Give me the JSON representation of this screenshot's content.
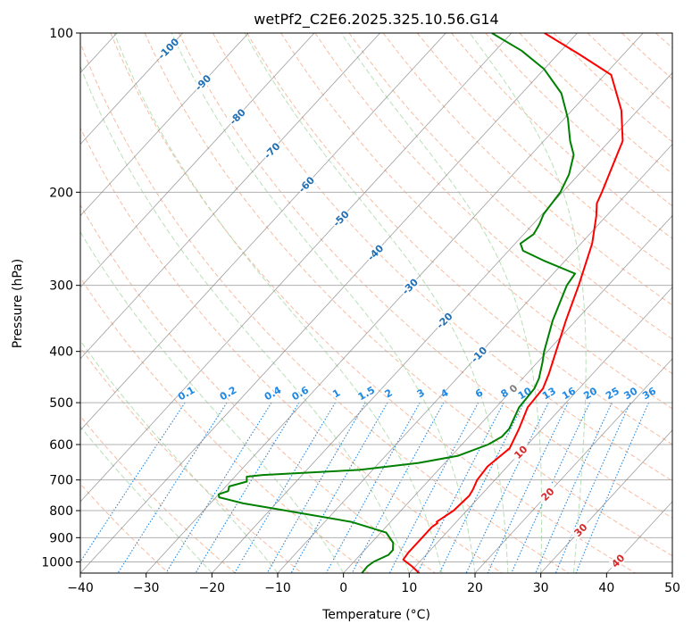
{
  "chart_data": {
    "type": "line",
    "title": "wetPf2_C2E6.2025.325.10.56.G14",
    "xlabel": "Temperature (°C)",
    "ylabel": "Pressure (hPa)",
    "xlim": [
      -40,
      50
    ],
    "ylim": [
      1050,
      100
    ],
    "y_scale": "log",
    "skew": "skew-T",
    "grid": true,
    "x_ticks": [
      -40,
      -30,
      -20,
      -10,
      0,
      10,
      20,
      30,
      40,
      50
    ],
    "y_ticks": [
      100,
      200,
      300,
      400,
      500,
      600,
      700,
      800,
      900,
      1000
    ],
    "series": [
      {
        "color": "#ff0000",
        "points": [
          {
            "t": 11.5,
            "p": 1050
          },
          {
            "t": 9.5,
            "p": 1020
          },
          {
            "t": 7.2,
            "p": 990
          },
          {
            "t": 7.0,
            "p": 960
          },
          {
            "t": 7.0,
            "p": 910
          },
          {
            "t": 7.0,
            "p": 860
          },
          {
            "t": 7.3,
            "p": 845
          },
          {
            "t": 7.0,
            "p": 840
          },
          {
            "t": 8.0,
            "p": 800
          },
          {
            "t": 8.3,
            "p": 750
          },
          {
            "t": 8.0,
            "p": 730
          },
          {
            "t": 7.3,
            "p": 700
          },
          {
            "t": 7.0,
            "p": 660
          },
          {
            "t": 7.8,
            "p": 610
          },
          {
            "t": 6.5,
            "p": 560
          },
          {
            "t": 4.8,
            "p": 510
          },
          {
            "t": 4.5,
            "p": 470
          },
          {
            "t": 3.3,
            "p": 440
          },
          {
            "t": 1.3,
            "p": 400
          },
          {
            "t": -1.5,
            "p": 350
          },
          {
            "t": -4.5,
            "p": 300
          },
          {
            "t": -8.3,
            "p": 250
          },
          {
            "t": -11.5,
            "p": 222
          },
          {
            "t": -13.2,
            "p": 210
          },
          {
            "t": -14.0,
            "p": 200
          },
          {
            "t": -15.4,
            "p": 185
          },
          {
            "t": -18.0,
            "p": 160
          },
          {
            "t": -22.5,
            "p": 140
          },
          {
            "t": -29.0,
            "p": 120
          },
          {
            "t": -36.5,
            "p": 110
          },
          {
            "t": -45.0,
            "p": 100
          }
        ]
      },
      {
        "color": "#008000",
        "points": [
          {
            "t": 2.8,
            "p": 1050
          },
          {
            "t": 2.7,
            "p": 1020
          },
          {
            "t": 3.0,
            "p": 1000
          },
          {
            "t": 4.3,
            "p": 970
          },
          {
            "t": 4.3,
            "p": 950
          },
          {
            "t": 3.3,
            "p": 920
          },
          {
            "t": 0.8,
            "p": 880
          },
          {
            "t": -6.0,
            "p": 840
          },
          {
            "t": -17.5,
            "p": 800
          },
          {
            "t": -25.0,
            "p": 775
          },
          {
            "t": -29.5,
            "p": 755
          },
          {
            "t": -30.0,
            "p": 745
          },
          {
            "t": -29.0,
            "p": 735
          },
          {
            "t": -29.5,
            "p": 720
          },
          {
            "t": -27.5,
            "p": 705
          },
          {
            "t": -28.2,
            "p": 690
          },
          {
            "t": -26.0,
            "p": 685
          },
          {
            "t": -12.0,
            "p": 670
          },
          {
            "t": -4.0,
            "p": 650
          },
          {
            "t": 1.0,
            "p": 630
          },
          {
            "t": 4.0,
            "p": 600
          },
          {
            "t": 5.0,
            "p": 580
          },
          {
            "t": 5.0,
            "p": 560
          },
          {
            "t": 3.5,
            "p": 510
          },
          {
            "t": 3.2,
            "p": 470
          },
          {
            "t": 2.5,
            "p": 450
          },
          {
            "t": 0.8,
            "p": 420
          },
          {
            "t": -0.5,
            "p": 400
          },
          {
            "t": -3.5,
            "p": 350
          },
          {
            "t": -6.3,
            "p": 300
          },
          {
            "t": -6.7,
            "p": 285
          },
          {
            "t": -13.0,
            "p": 270
          },
          {
            "t": -17.8,
            "p": 258
          },
          {
            "t": -19.2,
            "p": 250
          },
          {
            "t": -18.5,
            "p": 240
          },
          {
            "t": -19.0,
            "p": 230
          },
          {
            "t": -19.8,
            "p": 220
          },
          {
            "t": -20.3,
            "p": 200
          },
          {
            "t": -21.5,
            "p": 185
          },
          {
            "t": -23.5,
            "p": 170
          },
          {
            "t": -26.0,
            "p": 160
          },
          {
            "t": -29.5,
            "p": 145
          },
          {
            "t": -34.0,
            "p": 130
          },
          {
            "t": -40.0,
            "p": 117
          },
          {
            "t": -46.0,
            "p": 108
          },
          {
            "t": -53.0,
            "p": 100
          }
        ]
      }
    ],
    "dry_adiabat_labels": [
      "-100",
      "-90",
      "-80",
      "-70",
      "-60",
      "-50",
      "-40",
      "-30",
      "-20",
      "-10",
      "0",
      "10",
      "20",
      "30",
      "40"
    ],
    "mixing_ratio_labels": [
      "0.1",
      "0.2",
      "0.4",
      "0.6",
      "1",
      "1.5",
      "2",
      "3",
      "4",
      "6",
      "8",
      "10",
      "13",
      "16",
      "20",
      "25",
      "30",
      "36"
    ],
    "colors": {
      "temperature": "#ff0000",
      "dewpoint": "#008000",
      "dry_adiabat": "#f4a582",
      "moist_adiabat": "#a6d8a6",
      "mixing_ratio": "#1e88e5",
      "label_negative": "#1f6fb5",
      "label_zero": "#7f7f7f",
      "label_positive": "#d62728",
      "isotherm": "#7f7f7f",
      "isobar": "#b0b0b0"
    }
  }
}
